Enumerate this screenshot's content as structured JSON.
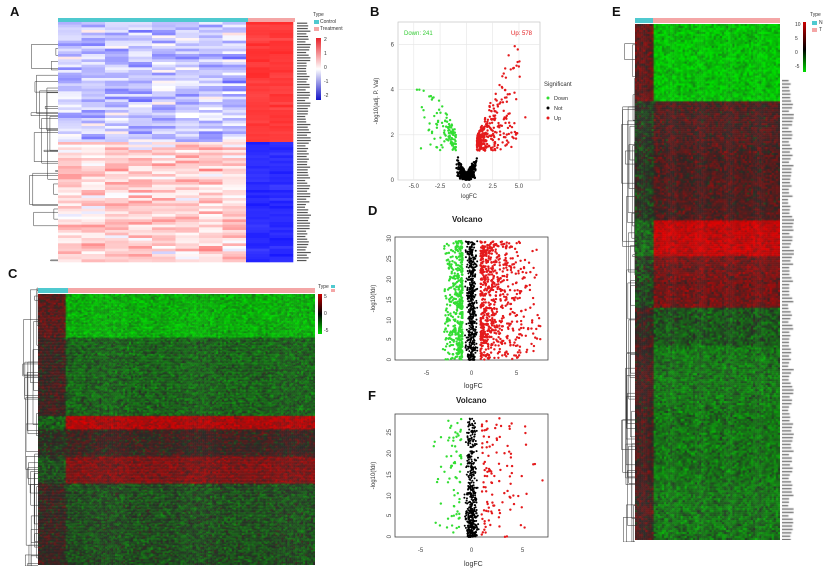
{
  "panels": {
    "a": "A",
    "b": "B",
    "c": "C",
    "d": "D",
    "e": "E",
    "f": "F"
  },
  "colors": {
    "up": "#e41a1c",
    "down": "#33dd33",
    "not": "#000000",
    "control": "#4fc9cf",
    "treatment": "#f4a6a6",
    "high": "#e8222a",
    "low": "#1414c8",
    "mid": "#ffffff",
    "hmGreen": "#00dd00",
    "hmRed": "#cc0000"
  },
  "legendA": {
    "type_title": "Type",
    "control": "Control",
    "treatment": "Treatment",
    "scale": [
      "2",
      "1",
      "0",
      "-1",
      "-2"
    ]
  },
  "legendCE": {
    "type_title": "Type",
    "control": "N",
    "treatment": "T",
    "scaleE": [
      "10",
      "5",
      "0",
      "-5"
    ],
    "scaleC": [
      "5",
      "0",
      "-5"
    ]
  },
  "chart_data": [
    {
      "panel": "A",
      "type": "heatmap",
      "columns": {
        "Control": 8,
        "Treatment": 2
      },
      "rows_up_in_treatment": "upper cluster",
      "rows_down_in_treatment": "lower cluster",
      "color_range": [
        -2,
        2
      ]
    },
    {
      "panel": "B",
      "type": "scatter",
      "title": "",
      "xlabel": "logFC",
      "ylabel": "-log10(adj. P. Val)",
      "xlim": [
        -6.5,
        7
      ],
      "ylim": [
        0,
        7
      ],
      "xticks": [
        "-5.0",
        "-2.5",
        "0.0",
        "2.5",
        "5.0"
      ],
      "yticks": [
        "0",
        "2",
        "4",
        "6"
      ],
      "annotations": {
        "down": "Down: 241",
        "up": "Up: 578"
      },
      "legend": {
        "title": "Significant",
        "entries": [
          "Down",
          "Not",
          "Up"
        ],
        "placement": "right"
      }
    },
    {
      "panel": "C",
      "type": "heatmap",
      "columns": {
        "N": "few",
        "T": "many"
      },
      "color_range": [
        -5,
        5
      ]
    },
    {
      "panel": "D",
      "type": "scatter",
      "title": "Volcano",
      "xlabel": "logFC",
      "ylabel": "-log10(fdr)",
      "xlim": [
        -8.5,
        8.5
      ],
      "ylim": [
        0,
        30
      ],
      "xticks": [
        "-5",
        "0",
        "5"
      ],
      "yticks": [
        "0",
        "5",
        "10",
        "15",
        "20",
        "25",
        "30"
      ]
    },
    {
      "panel": "E",
      "type": "heatmap",
      "columns": {
        "N": "few",
        "T": "many"
      },
      "color_range": [
        -5,
        10
      ]
    },
    {
      "panel": "F",
      "type": "scatter",
      "title": "Volcano",
      "xlabel": "logFC",
      "ylabel": "-log10(fdr)",
      "xlim": [
        -7.5,
        7.5
      ],
      "ylim": [
        0,
        29
      ],
      "xticks": [
        "-5",
        "0",
        "5"
      ],
      "yticks": [
        "0",
        "5",
        "10",
        "15",
        "20",
        "25"
      ]
    }
  ]
}
